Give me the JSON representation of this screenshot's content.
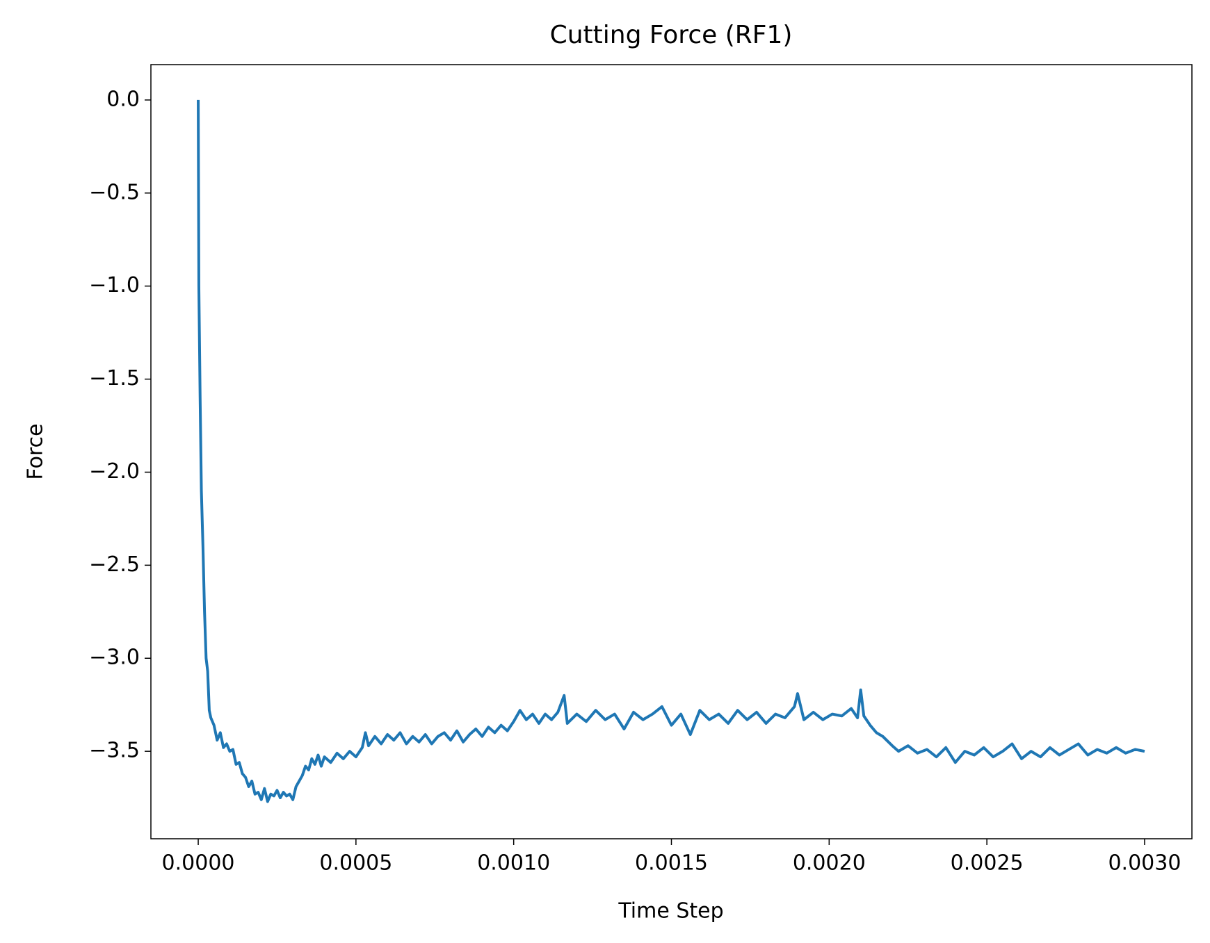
{
  "chart_data": {
    "type": "line",
    "title": "Cutting Force (RF1)",
    "x_label": "Time Step",
    "y_label": "Force",
    "color": "#1f77b4",
    "grid": false,
    "xlim": [
      -0.00015,
      0.00315
    ],
    "ylim": [
      -3.97,
      0.19
    ],
    "xticks": [
      {
        "value": 0,
        "label": "0.0000"
      },
      {
        "value": 0.0005,
        "label": "0.0005"
      },
      {
        "value": 0.001,
        "label": "0.0010"
      },
      {
        "value": 0.0015,
        "label": "0.0015"
      },
      {
        "value": 0.002,
        "label": "0.0020"
      },
      {
        "value": 0.0025,
        "label": "0.0025"
      },
      {
        "value": 0.003,
        "label": "0.0030"
      }
    ],
    "yticks": [
      {
        "value": 0,
        "label": "0.0"
      },
      {
        "value": -0.5,
        "label": "−0.5"
      },
      {
        "value": -1.0,
        "label": "−1.0"
      },
      {
        "value": -1.5,
        "label": "−1.5"
      },
      {
        "value": -2.0,
        "label": "−2.0"
      },
      {
        "value": -2.5,
        "label": "−2.5"
      },
      {
        "value": -3.0,
        "label": "−3.0"
      },
      {
        "value": -3.5,
        "label": "−3.5"
      }
    ],
    "x": [
      0,
      2e-06,
      6e-06,
      1e-05,
      1.5e-05,
      2e-05,
      2.5e-05,
      3e-05,
      3.5e-05,
      4e-05,
      5e-05,
      6e-05,
      7e-05,
      8e-05,
      9e-05,
      0.0001,
      0.00011,
      0.00012,
      0.00013,
      0.00014,
      0.00015,
      0.00016,
      0.00017,
      0.00018,
      0.00019,
      0.0002,
      0.00021,
      0.00022,
      0.00023,
      0.00024,
      0.00025,
      0.00026,
      0.00027,
      0.00028,
      0.00029,
      0.0003,
      0.00031,
      0.00032,
      0.00033,
      0.00034,
      0.00035,
      0.00036,
      0.00037,
      0.00038,
      0.00039,
      0.0004,
      0.00042,
      0.00044,
      0.00046,
      0.00048,
      0.0005,
      0.00052,
      0.00053,
      0.00054,
      0.00056,
      0.00058,
      0.0006,
      0.00062,
      0.00064,
      0.00066,
      0.00068,
      0.0007,
      0.00072,
      0.00074,
      0.00076,
      0.00078,
      0.0008,
      0.00082,
      0.00084,
      0.00086,
      0.00088,
      0.0009,
      0.00092,
      0.00094,
      0.00096,
      0.00098,
      0.001,
      0.00102,
      0.00104,
      0.00106,
      0.00108,
      0.0011,
      0.00112,
      0.00114,
      0.00116,
      0.00117,
      0.0012,
      0.00123,
      0.00126,
      0.00129,
      0.00132,
      0.00135,
      0.00138,
      0.00141,
      0.00144,
      0.00147,
      0.0015,
      0.00153,
      0.00156,
      0.00159,
      0.00162,
      0.00165,
      0.00168,
      0.00171,
      0.00174,
      0.00177,
      0.0018,
      0.00183,
      0.00186,
      0.00189,
      0.0019,
      0.00192,
      0.00195,
      0.00198,
      0.00201,
      0.00204,
      0.00207,
      0.00209,
      0.0021,
      0.00211,
      0.00213,
      0.00215,
      0.00217,
      0.0022,
      0.00222,
      0.00225,
      0.00228,
      0.00231,
      0.00234,
      0.00237,
      0.0024,
      0.00243,
      0.00246,
      0.00249,
      0.00252,
      0.00255,
      0.00258,
      0.00261,
      0.00264,
      0.00267,
      0.0027,
      0.00273,
      0.00276,
      0.00279,
      0.00282,
      0.00285,
      0.00288,
      0.00291,
      0.00294,
      0.00297,
      0.003
    ],
    "values": [
      0,
      -1.0,
      -1.6,
      -2.1,
      -2.4,
      -2.75,
      -3.0,
      -3.07,
      -3.28,
      -3.32,
      -3.36,
      -3.44,
      -3.4,
      -3.48,
      -3.46,
      -3.5,
      -3.49,
      -3.57,
      -3.56,
      -3.62,
      -3.64,
      -3.69,
      -3.66,
      -3.73,
      -3.72,
      -3.76,
      -3.7,
      -3.77,
      -3.73,
      -3.74,
      -3.71,
      -3.75,
      -3.72,
      -3.74,
      -3.73,
      -3.76,
      -3.69,
      -3.66,
      -3.63,
      -3.58,
      -3.6,
      -3.54,
      -3.57,
      -3.52,
      -3.58,
      -3.53,
      -3.56,
      -3.51,
      -3.54,
      -3.5,
      -3.53,
      -3.48,
      -3.4,
      -3.47,
      -3.42,
      -3.46,
      -3.41,
      -3.44,
      -3.4,
      -3.46,
      -3.42,
      -3.45,
      -3.41,
      -3.46,
      -3.42,
      -3.4,
      -3.44,
      -3.39,
      -3.45,
      -3.41,
      -3.38,
      -3.42,
      -3.37,
      -3.4,
      -3.36,
      -3.39,
      -3.34,
      -3.28,
      -3.33,
      -3.3,
      -3.35,
      -3.3,
      -3.33,
      -3.29,
      -3.2,
      -3.35,
      -3.3,
      -3.34,
      -3.28,
      -3.33,
      -3.3,
      -3.38,
      -3.29,
      -3.33,
      -3.3,
      -3.26,
      -3.36,
      -3.3,
      -3.41,
      -3.28,
      -3.33,
      -3.3,
      -3.35,
      -3.28,
      -3.33,
      -3.29,
      -3.35,
      -3.3,
      -3.32,
      -3.26,
      -3.19,
      -3.33,
      -3.29,
      -3.33,
      -3.3,
      -3.31,
      -3.27,
      -3.32,
      -3.17,
      -3.31,
      -3.36,
      -3.4,
      -3.42,
      -3.47,
      -3.5,
      -3.47,
      -3.51,
      -3.49,
      -3.53,
      -3.48,
      -3.56,
      -3.5,
      -3.52,
      -3.48,
      -3.53,
      -3.5,
      -3.46,
      -3.54,
      -3.5,
      -3.53,
      -3.48,
      -3.52,
      -3.49,
      -3.46,
      -3.52,
      -3.49,
      -3.51,
      -3.48,
      -3.51,
      -3.49,
      -3.5
    ]
  }
}
